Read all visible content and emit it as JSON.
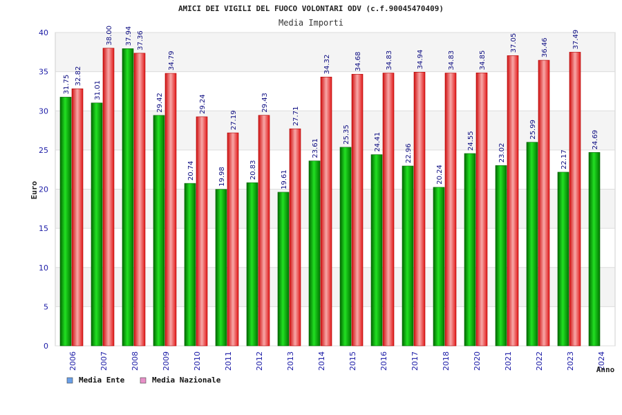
{
  "chart_data": {
    "type": "bar",
    "title": "AMICI DEI VIGILI DEL FUOCO VOLONTARI ODV (c.f.90045470409)",
    "subtitle": "Media Importi",
    "xlabel": "Anno",
    "ylabel": "Euro",
    "ylim": [
      0,
      40
    ],
    "yticks": [
      0,
      5,
      10,
      15,
      20,
      25,
      30,
      35,
      40
    ],
    "grid": true,
    "legend_position": "bottom-left",
    "categories": [
      "2006",
      "2007",
      "2008",
      "2009",
      "2010",
      "2011",
      "2012",
      "2013",
      "2014",
      "2015",
      "2016",
      "2017",
      "2018",
      "2020",
      "2021",
      "2022",
      "2023",
      "2024"
    ],
    "series": [
      {
        "name": "Media Ente",
        "color": "#00b000",
        "values": [
          31.75,
          31.01,
          37.94,
          29.42,
          20.74,
          19.98,
          20.83,
          19.61,
          23.61,
          25.35,
          24.41,
          22.96,
          20.24,
          24.55,
          23.02,
          25.99,
          22.17,
          24.69
        ],
        "labels": [
          "31.75",
          "31.01",
          "37.94",
          "29.42",
          "20.74",
          "19.98",
          "20.83",
          "19.61",
          "23.61",
          "25.35",
          "24.41",
          "22.96",
          "20.24",
          "24.55",
          "23.02",
          "25.99",
          "22.17",
          "24.69"
        ]
      },
      {
        "name": "Media Nazionale",
        "color": "#e82020",
        "values": [
          32.82,
          38.0,
          37.36,
          34.79,
          29.24,
          27.19,
          29.43,
          27.71,
          34.32,
          34.68,
          34.83,
          34.94,
          34.83,
          34.85,
          37.05,
          36.46,
          37.49,
          null
        ],
        "labels": [
          "32.82",
          "38.00",
          "37.36",
          "34.79",
          "29.24",
          "27.19",
          "29.43",
          "27.71",
          "34.32",
          "34.68",
          "34.83",
          "34.94",
          "34.83",
          "34.85",
          "37.05",
          "36.46",
          "37.49",
          null
        ]
      }
    ]
  },
  "legend": {
    "items": [
      {
        "label": "Media Ente",
        "swatch_color": "#6aa0e8"
      },
      {
        "label": "Media Nazionale",
        "swatch_color": "#e890c8"
      }
    ]
  }
}
